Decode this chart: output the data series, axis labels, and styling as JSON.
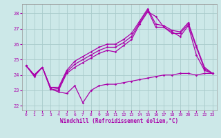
{
  "xlabel": "Windchill (Refroidissement éolien,°C)",
  "xlim": [
    -0.5,
    23.5
  ],
  "ylim": [
    21.7,
    28.6
  ],
  "yticks": [
    22,
    23,
    24,
    25,
    26,
    27,
    28
  ],
  "xticks": [
    0,
    1,
    2,
    3,
    4,
    5,
    6,
    7,
    8,
    9,
    10,
    11,
    12,
    13,
    14,
    15,
    16,
    17,
    18,
    19,
    20,
    21,
    22,
    23
  ],
  "bg_color": "#cce8e8",
  "grid_color": "#aacccc",
  "line_color": "#aa00aa",
  "line1_y": [
    24.6,
    23.9,
    24.5,
    23.1,
    22.9,
    22.8,
    23.3,
    22.2,
    23.0,
    23.3,
    23.4,
    23.4,
    23.5,
    23.6,
    23.7,
    23.8,
    23.9,
    24.0,
    24.0,
    24.1,
    24.1,
    24.0,
    24.1,
    24.1
  ],
  "line2_y": [
    24.6,
    24.0,
    24.5,
    23.1,
    23.0,
    24.1,
    24.5,
    24.8,
    25.1,
    25.4,
    25.6,
    25.5,
    25.9,
    26.3,
    27.3,
    28.1,
    27.8,
    27.1,
    26.8,
    26.5,
    27.2,
    25.3,
    24.3,
    24.1
  ],
  "line3_y": [
    24.6,
    24.0,
    24.5,
    23.2,
    23.1,
    24.2,
    24.7,
    25.0,
    25.3,
    25.6,
    25.8,
    25.8,
    26.1,
    26.5,
    27.4,
    28.2,
    27.1,
    27.1,
    26.7,
    26.7,
    27.3,
    25.8,
    24.4,
    24.1
  ],
  "line4_y": [
    24.6,
    24.0,
    24.5,
    23.2,
    23.2,
    24.3,
    24.9,
    25.2,
    25.5,
    25.8,
    26.0,
    26.0,
    26.3,
    26.7,
    27.5,
    28.3,
    27.3,
    27.2,
    26.9,
    26.8,
    27.4,
    25.9,
    24.5,
    24.1
  ]
}
